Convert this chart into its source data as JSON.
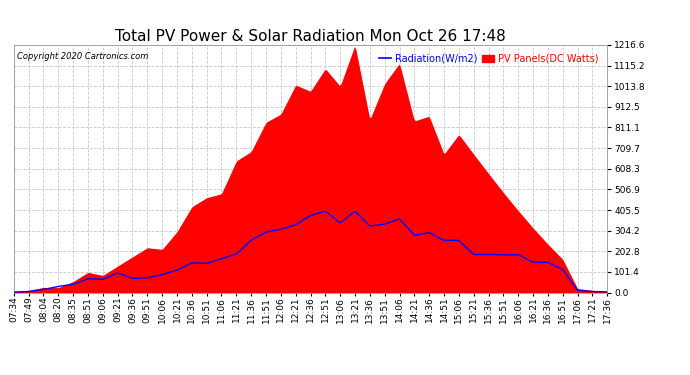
{
  "title": "Total PV Power & Solar Radiation Mon Oct 26 17:48",
  "copyright": "Copyright 2020 Cartronics.com",
  "legend_radiation": "Radiation(W/m2)",
  "legend_pv": "PV Panels(DC Watts)",
  "ylabel_right_ticks": [
    0.0,
    101.4,
    202.8,
    304.2,
    405.5,
    506.9,
    608.3,
    709.7,
    811.1,
    912.5,
    1013.8,
    1115.2,
    1216.6
  ],
  "ylim": [
    0,
    1216.6
  ],
  "background_color": "#ffffff",
  "grid_color": "#c8c8c8",
  "pv_color": "#ff0000",
  "radiation_color": "#0000ff",
  "title_fontsize": 11,
  "tick_fontsize": 6.5,
  "x_labels": [
    "07:34",
    "07:49",
    "08:04",
    "08:20",
    "08:35",
    "08:51",
    "09:06",
    "09:21",
    "09:36",
    "09:51",
    "10:06",
    "10:21",
    "10:36",
    "10:51",
    "11:06",
    "11:21",
    "11:36",
    "11:51",
    "12:06",
    "12:21",
    "12:36",
    "12:51",
    "13:06",
    "13:21",
    "13:36",
    "13:51",
    "14:06",
    "14:21",
    "14:36",
    "14:51",
    "15:06",
    "15:21",
    "15:36",
    "15:51",
    "16:06",
    "16:21",
    "16:36",
    "16:51",
    "17:06",
    "17:21",
    "17:36"
  ]
}
